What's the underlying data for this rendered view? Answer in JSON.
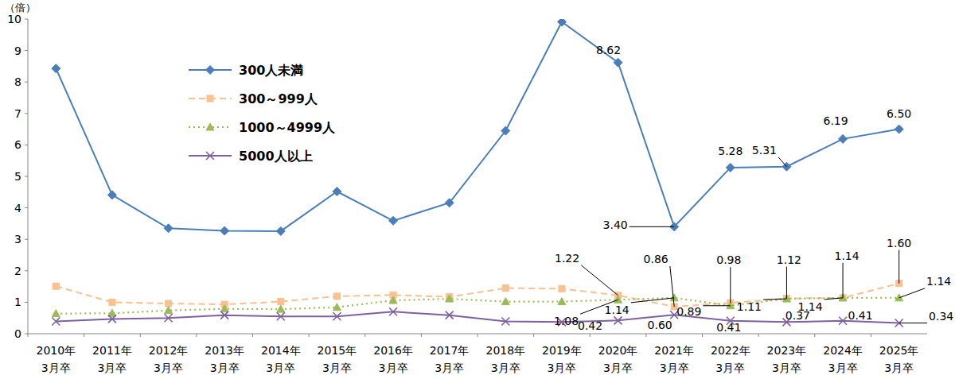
{
  "chart_data": {
    "type": "line",
    "ylabel": "（倍）",
    "categories": [
      "2010年3月卒",
      "2011年3月卒",
      "2012年3月卒",
      "2013年3月卒",
      "2014年3月卒",
      "2015年3月卒",
      "2016年3月卒",
      "2017年3月卒",
      "2018年3月卒",
      "2019年3月卒",
      "2020年3月卒",
      "2021年3月卒",
      "2022年3月卒",
      "2023年3月卒",
      "2024年3月卒",
      "2025年3月卒"
    ],
    "ylim": [
      0,
      10
    ],
    "yticks": [
      0,
      1,
      2,
      3,
      4,
      5,
      6,
      7,
      8,
      9,
      10
    ],
    "grid": false,
    "legend": "upper left",
    "data_labels": true,
    "series": [
      {
        "name": "300人未満",
        "color": "#4a7ebb",
        "marker": "diamond",
        "line_style": "solid",
        "values": [
          8.43,
          4.41,
          3.35,
          3.27,
          3.26,
          4.52,
          3.59,
          4.16,
          6.45,
          9.91,
          8.62,
          3.4,
          5.28,
          5.31,
          6.19,
          6.5
        ],
        "value_labels": [
          null,
          null,
          null,
          null,
          null,
          null,
          null,
          null,
          null,
          null,
          "8.62",
          "3.40",
          "5.28",
          "5.31",
          "6.19",
          "6.50"
        ]
      },
      {
        "name": "300～999人",
        "color": "#fac090",
        "marker": "square",
        "line_style": "dashed",
        "values": [
          1.51,
          1.0,
          0.96,
          0.93,
          1.02,
          1.19,
          1.23,
          1.17,
          1.45,
          1.43,
          1.22,
          0.86,
          0.98,
          1.12,
          1.14,
          1.6
        ],
        "value_labels": [
          null,
          null,
          null,
          null,
          null,
          null,
          null,
          null,
          null,
          null,
          "1.22",
          "0.86",
          "0.98",
          "1.12",
          "1.14",
          "1.60"
        ]
      },
      {
        "name": "1000～4999人",
        "color": "#9bbb59",
        "marker": "triangle",
        "line_style": "dotted",
        "values": [
          0.64,
          0.65,
          0.74,
          0.79,
          0.78,
          0.84,
          1.06,
          1.11,
          1.02,
          1.02,
          1.08,
          1.14,
          0.89,
          1.11,
          1.14,
          1.14
        ],
        "value_labels": [
          null,
          null,
          null,
          null,
          null,
          null,
          null,
          null,
          null,
          null,
          "1.08",
          "1.14",
          "0.89",
          "1.11",
          "1.14",
          "1.14"
        ]
      },
      {
        "name": "5000人以上",
        "color": "#7f60a0",
        "marker": "x",
        "line_style": "solid",
        "values": [
          0.39,
          0.47,
          0.5,
          0.59,
          0.55,
          0.55,
          0.7,
          0.59,
          0.39,
          0.37,
          0.42,
          0.6,
          0.41,
          0.37,
          0.41,
          0.34
        ],
        "value_labels": [
          null,
          null,
          null,
          null,
          null,
          null,
          null,
          null,
          null,
          null,
          "0.42",
          "0.60",
          "0.41",
          "0.37",
          "0.41",
          "0.34"
        ]
      }
    ]
  }
}
